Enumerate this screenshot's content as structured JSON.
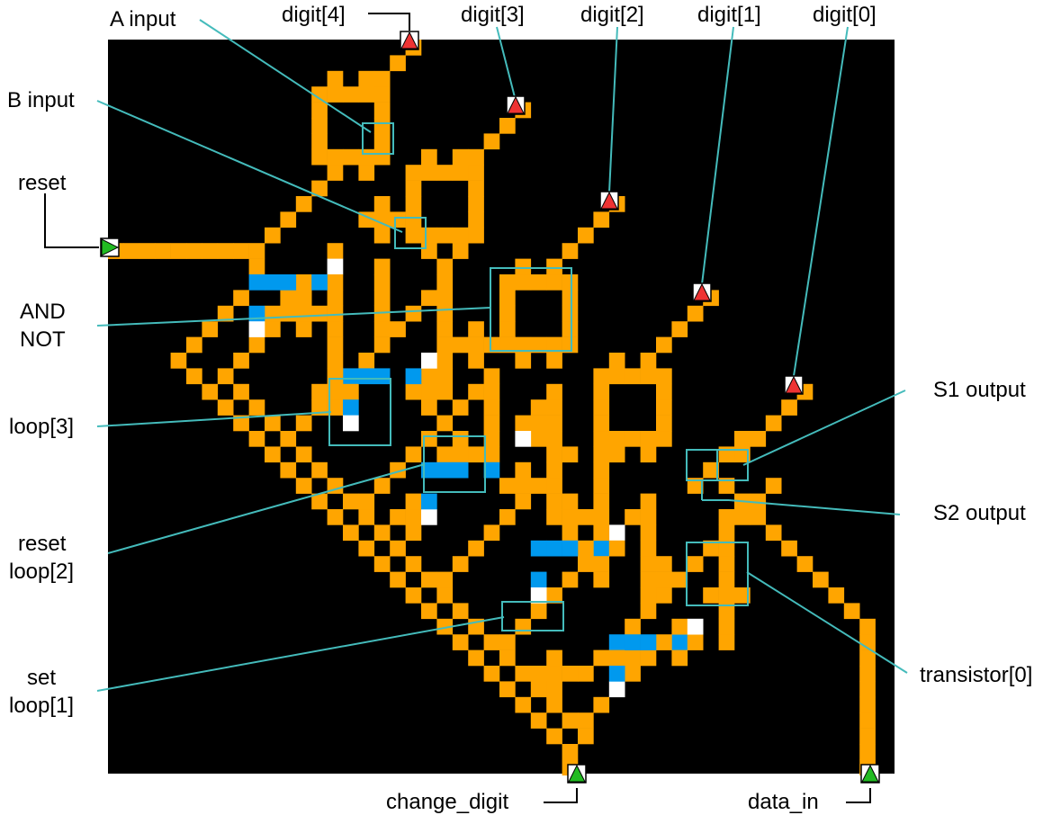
{
  "colors": {
    "background": "#000000",
    "wire": "#ffa500",
    "wire_blue": "#0099ee",
    "wire_white": "#ffffff",
    "output_pin": "#ee3333",
    "input_pin": "#22bb22",
    "leader_line": "#44bbbb",
    "arrow_line": "#000000"
  },
  "labels": {
    "a_input": "A input",
    "b_input": "B input",
    "reset": "reset",
    "and_not_line1": "AND",
    "and_not_line2": "NOT",
    "loop3": "loop[3]",
    "reset_loop2_line1": "reset",
    "reset_loop2_line2": "loop[2]",
    "set_loop1_line1": "set",
    "set_loop1_line2": "loop[1]",
    "digit4": "digit[4]",
    "digit3": "digit[3]",
    "digit2": "digit[2]",
    "digit1": "digit[1]",
    "digit0": "digit[0]",
    "s1_output": "S1 output",
    "s2_output": "S2 output",
    "transistor0": "transistor[0]",
    "change_digit": "change_digit",
    "data_in": "data_in"
  },
  "pins": {
    "outputs": [
      "digit[4]",
      "digit[3]",
      "digit[2]",
      "digit[1]",
      "digit[0]"
    ],
    "inputs": [
      "reset",
      "change_digit",
      "data_in"
    ],
    "output_icon": "up-triangle-icon",
    "input_icon": "triangle-icon"
  }
}
